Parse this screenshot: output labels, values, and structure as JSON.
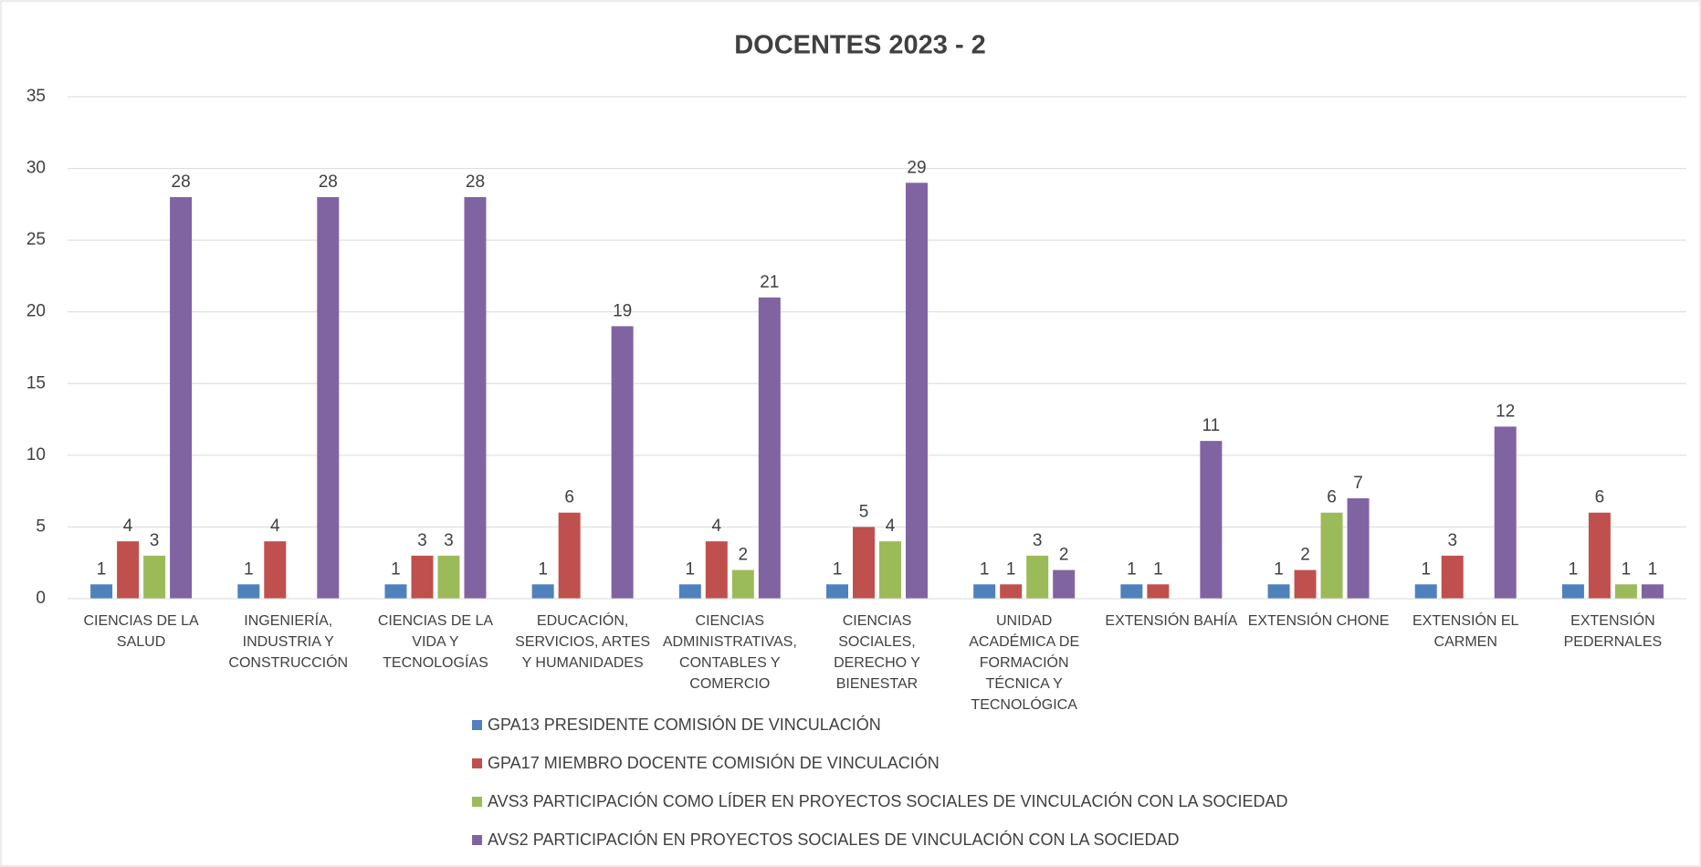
{
  "chart_data": {
    "type": "bar",
    "title": "DOCENTES 2023 - 2",
    "categories": [
      "CIENCIAS DE LA SALUD",
      "INGENIERÍA, INDUSTRIA Y CONSTRUCCIÓN",
      "CIENCIAS DE LA VIDA Y TECNOLOGÍAS",
      "EDUCACIÓN, SERVICIOS, ARTES Y HUMANIDADES",
      "CIENCIAS ADMINISTRATIVAS, CONTABLES Y COMERCIO",
      "CIENCIAS SOCIALES, DERECHO Y BIENESTAR",
      "UNIDAD ACADÉMICA DE FORMACIÓN TÉCNICA Y TECNOLÓGICA",
      "EXTENSIÓN BAHÍA",
      "EXTENSIÓN CHONE",
      "EXTENSIÓN EL CARMEN",
      "EXTENSIÓN PEDERNALES"
    ],
    "series": [
      {
        "name": "GPA13 PRESIDENTE COMISIÓN DE VINCULACIÓN",
        "color": "#4f81bd",
        "values": [
          1,
          1,
          1,
          1,
          1,
          1,
          1,
          1,
          1,
          1,
          1
        ]
      },
      {
        "name": "GPA17 MIEMBRO DOCENTE COMISIÓN DE VINCULACIÓN",
        "color": "#c0504d",
        "values": [
          4,
          4,
          3,
          6,
          4,
          5,
          1,
          1,
          2,
          3,
          6
        ]
      },
      {
        "name": "AVS3 PARTICIPACIÓN COMO LÍDER EN PROYECTOS SOCIALES DE VINCULACIÓN CON LA SOCIEDAD",
        "color": "#9bbb59",
        "values": [
          3,
          null,
          3,
          null,
          2,
          4,
          3,
          null,
          6,
          null,
          1
        ]
      },
      {
        "name": "AVS2 PARTICIPACIÓN EN PROYECTOS SOCIALES DE VINCULACIÓN CON LA SOCIEDAD",
        "color": "#8064a2",
        "values": [
          28,
          28,
          28,
          19,
          21,
          29,
          2,
          11,
          7,
          12,
          1
        ]
      }
    ],
    "ylim": [
      0,
      35
    ],
    "yticks": [
      0,
      5,
      10,
      15,
      20,
      25,
      30,
      35
    ],
    "grid": true,
    "legend": "bottom"
  }
}
